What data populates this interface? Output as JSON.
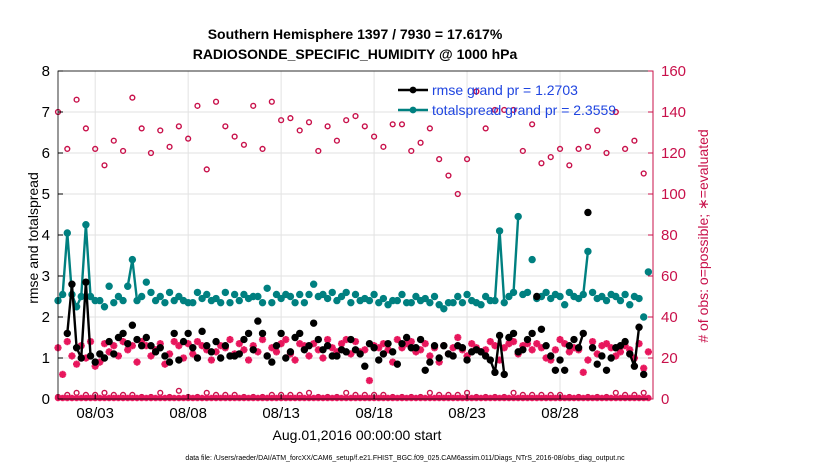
{
  "chart_data": {
    "type": "line",
    "title": "Southern Hemisphere 1397 / 7930 = 17.617%",
    "subtitle": "RADIOSONDE_SPECIFIC_HUMIDITY @ 1000 hPa",
    "xlabel": "Aug.01,2016 00:00:00 start",
    "ylabel": "rmse and totalspread",
    "y2label": "# of obs: o=possible; ∗=evaluated",
    "footnote": "data file: /Users/raeder/DAI/ATM_forcXX/CAM6_setup/f.e21.FHIST_BGC.f09_025.CAM6assim.011/Diags_NTrS_2016-08/obs_diag_output.nc",
    "xlim": [
      1,
      33
    ],
    "ylim": [
      0,
      8
    ],
    "y2lim": [
      0,
      160
    ],
    "x_tick_values": [
      3,
      8,
      13,
      18,
      23,
      28
    ],
    "x_tick_labels": [
      "08/03",
      "08/08",
      "08/13",
      "08/18",
      "08/23",
      "08/28"
    ],
    "y_tick_labels": [
      "0",
      "1",
      "2",
      "3",
      "4",
      "5",
      "6",
      "7",
      "8"
    ],
    "y2_tick_labels": [
      "0",
      "20",
      "40",
      "60",
      "80",
      "100",
      "120",
      "140",
      "160"
    ],
    "x": [
      1.0,
      1.25,
      1.5,
      1.75,
      2.0,
      2.25,
      2.5,
      2.75,
      3.0,
      3.25,
      3.5,
      3.75,
      4.0,
      4.25,
      4.5,
      4.75,
      5.0,
      5.25,
      5.5,
      5.75,
      6.0,
      6.25,
      6.5,
      6.75,
      7.0,
      7.25,
      7.5,
      7.75,
      8.0,
      8.25,
      8.5,
      8.75,
      9.0,
      9.25,
      9.5,
      9.75,
      10.0,
      10.25,
      10.5,
      10.75,
      11.0,
      11.25,
      11.5,
      11.75,
      12.0,
      12.25,
      12.5,
      12.75,
      13.0,
      13.25,
      13.5,
      13.75,
      14.0,
      14.25,
      14.5,
      14.75,
      15.0,
      15.25,
      15.5,
      15.75,
      16.0,
      16.25,
      16.5,
      16.75,
      17.0,
      17.25,
      17.5,
      17.75,
      18.0,
      18.25,
      18.5,
      18.75,
      19.0,
      19.25,
      19.5,
      19.75,
      20.0,
      20.25,
      20.5,
      20.75,
      21.0,
      21.25,
      21.5,
      21.75,
      22.0,
      22.25,
      22.5,
      22.75,
      23.0,
      23.25,
      23.5,
      23.75,
      24.0,
      24.25,
      24.5,
      24.75,
      25.0,
      25.25,
      25.5,
      25.75,
      26.0,
      26.25,
      26.5,
      26.75,
      27.0,
      27.25,
      27.5,
      27.75,
      28.0,
      28.25,
      28.5,
      28.75,
      29.0,
      29.25,
      29.5,
      29.75,
      30.0,
      30.25,
      30.5,
      30.75,
      31.0,
      31.25,
      31.5,
      31.75,
      32.0,
      32.25,
      32.5,
      32.75
    ],
    "series": [
      {
        "name": "rmse grand pr = 1.2703",
        "color": "#000000",
        "values": [
          null,
          null,
          1.6,
          2.8,
          1.25,
          1.0,
          2.85,
          1.05,
          0.9,
          1.1,
          1.0,
          1.4,
          1.1,
          1.5,
          1.6,
          1.35,
          1.8,
          1.45,
          1.3,
          1.5,
          1.3,
          1.15,
          1.25,
          1.05,
          0.9,
          1.6,
          0.95,
          1.4,
          1.6,
          1.25,
          1.0,
          1.65,
          1.3,
          1.15,
          1.4,
          1.0,
          1.3,
          1.05,
          1.05,
          1.1,
          1.45,
          1.6,
          1.2,
          1.9,
          1.6,
          1.05,
          0.9,
          1.3,
          1.6,
          1.0,
          1.15,
          1.5,
          1.6,
          1.2,
          1.3,
          1.85,
          1.45,
          1.2,
          1.3,
          1.05,
          1.05,
          1.2,
          1.15,
          1.45,
          1.2,
          1.1,
          0.8,
          1.35,
          1.25,
          0.95,
          1.1,
          1.35,
          1.15,
          0.85,
          1.35,
          1.5,
          1.25,
          1.25,
          1.45,
          0.7,
          0.9,
          1.3,
          1.0,
          1.3,
          1.1,
          1.05,
          1.3,
          1.25,
          0.95,
          1.15,
          1.2,
          1.15,
          1.05,
          0.95,
          0.65,
          1.55,
          0.6,
          1.5,
          1.6,
          1.15,
          1.2,
          1.45,
          1.6,
          2.5,
          1.7,
          1.3,
          1.05,
          0.7,
          0.95,
          0.7,
          1.3,
          1.45,
          1.25,
          1.6,
          4.55,
          1.25,
          0.85,
          1.05,
          0.7,
          1.0,
          1.25,
          1.3,
          1.4,
          1.1,
          0.8,
          1.75,
          0.6,
          null
        ],
        "connected": [
          [
            2,
            7
          ],
          [
            92,
            96
          ],
          [
            112,
            113
          ],
          [
            123,
            125
          ]
        ]
      },
      {
        "name": "totalspread grand pr = 2.3559",
        "color": "#008080",
        "values": [
          2.4,
          2.55,
          4.05,
          2.55,
          2.25,
          2.5,
          4.25,
          2.5,
          2.4,
          2.4,
          2.25,
          2.75,
          2.35,
          2.5,
          2.4,
          2.75,
          3.4,
          2.4,
          2.5,
          2.85,
          2.6,
          2.4,
          2.5,
          2.35,
          2.6,
          2.4,
          2.5,
          2.4,
          2.35,
          2.35,
          2.6,
          2.45,
          2.55,
          2.4,
          2.45,
          2.35,
          2.6,
          2.35,
          2.55,
          2.4,
          2.55,
          2.45,
          2.5,
          2.5,
          2.35,
          2.7,
          2.35,
          2.55,
          2.45,
          2.55,
          2.5,
          2.35,
          2.55,
          2.35,
          2.55,
          2.8,
          2.5,
          2.55,
          2.45,
          2.6,
          2.4,
          2.5,
          2.6,
          2.35,
          2.55,
          2.4,
          2.45,
          2.4,
          2.55,
          2.35,
          2.45,
          2.3,
          2.4,
          2.4,
          2.55,
          2.35,
          2.35,
          2.5,
          2.4,
          2.45,
          2.35,
          2.5,
          2.3,
          2.2,
          2.35,
          2.35,
          2.5,
          2.35,
          2.55,
          2.4,
          2.35,
          2.3,
          2.5,
          2.4,
          2.4,
          4.1,
          2.35,
          2.5,
          2.6,
          4.45,
          2.55,
          2.6,
          3.4,
          2.45,
          2.5,
          2.6,
          2.45,
          2.55,
          2.5,
          2.3,
          2.6,
          2.5,
          2.45,
          2.55,
          3.6,
          2.6,
          2.45,
          2.5,
          2.4,
          2.55,
          2.5,
          2.4,
          2.55,
          2.3,
          2.5,
          2.45,
          2.0,
          3.1
        ],
        "connected": [
          [
            0,
            8
          ],
          [
            15,
            17
          ],
          [
            93,
            96
          ],
          [
            97,
            99
          ],
          [
            112,
            114
          ],
          [
            124,
            125
          ]
        ]
      },
      {
        "name": "obs possible",
        "axis": "right",
        "color": "#c8104a",
        "marker": "o",
        "x": [
          1.0,
          1.5,
          2.0,
          2.5,
          3.0,
          3.5,
          4.0,
          4.5,
          5.0,
          5.5,
          6.0,
          6.5,
          7.0,
          7.5,
          8.0,
          8.5,
          9.0,
          9.5,
          10.0,
          10.5,
          11.0,
          11.5,
          12.0,
          12.5,
          13.0,
          13.5,
          14.0,
          14.5,
          15.0,
          15.5,
          16.0,
          16.5,
          17.0,
          17.5,
          18.0,
          18.5,
          19.0,
          19.5,
          20.0,
          20.5,
          21.0,
          21.5,
          22.0,
          22.5,
          23.0,
          23.5,
          24.0,
          24.5,
          25.0,
          25.5,
          26.0,
          26.5,
          27.0,
          27.5,
          28.0,
          28.5,
          29.0,
          29.5,
          30.0,
          30.5,
          31.0,
          31.5,
          32.0,
          32.5
        ],
        "values": [
          140,
          122,
          146,
          132,
          122,
          114,
          126,
          121,
          147,
          132,
          120,
          131,
          123,
          133,
          127,
          143,
          112,
          145,
          133,
          128,
          124,
          143,
          122,
          145,
          136,
          137,
          131,
          135,
          121,
          133,
          126,
          136,
          138,
          133,
          128,
          123,
          134,
          134,
          121,
          125,
          132,
          117,
          109,
          100,
          117,
          150,
          132,
          141,
          141,
          141,
          121,
          134,
          115,
          118,
          122,
          114,
          122,
          123,
          131,
          120,
          140,
          122,
          126,
          110
        ]
      },
      {
        "name": "obs evaluated",
        "axis": "right",
        "color": "#e8175d",
        "marker": "*",
        "x": [
          1.0,
          1.25,
          1.5,
          1.75,
          2.0,
          2.25,
          2.5,
          2.75,
          3.0,
          3.25,
          3.5,
          3.75,
          4.0,
          4.25,
          4.5,
          4.75,
          5.0,
          5.25,
          5.5,
          5.75,
          6.0,
          6.25,
          6.5,
          6.75,
          7.0,
          7.25,
          7.5,
          7.75,
          8.0,
          8.25,
          8.5,
          8.75,
          9.0,
          9.25,
          9.5,
          9.75,
          10.0,
          10.25,
          10.5,
          10.75,
          11.0,
          11.25,
          11.5,
          11.75,
          12.0,
          12.25,
          12.5,
          12.75,
          13.0,
          13.25,
          13.5,
          13.75,
          14.0,
          14.25,
          14.5,
          14.75,
          15.0,
          15.25,
          15.5,
          15.75,
          16.0,
          16.25,
          16.5,
          16.75,
          17.0,
          17.25,
          17.5,
          17.75,
          18.0,
          18.25,
          18.5,
          18.75,
          19.0,
          19.25,
          19.5,
          19.75,
          20.0,
          20.25,
          20.5,
          20.75,
          21.0,
          21.25,
          21.5,
          21.75,
          22.0,
          22.25,
          22.5,
          22.75,
          23.0,
          23.25,
          23.5,
          23.75,
          24.0,
          24.25,
          24.5,
          24.75,
          25.0,
          25.25,
          25.5,
          25.75,
          26.0,
          26.25,
          26.5,
          26.75,
          27.0,
          27.25,
          27.5,
          27.75,
          28.0,
          28.25,
          28.5,
          28.75,
          29.0,
          29.25,
          29.5,
          29.75,
          30.0,
          30.25,
          30.5,
          30.75,
          31.0,
          31.25,
          31.5,
          31.75,
          32.0,
          32.25,
          32.5,
          32.75
        ],
        "values": [
          25,
          12,
          28,
          21,
          17,
          26,
          20,
          28,
          16,
          18,
          27,
          23,
          26,
          21,
          28,
          24,
          26,
          18,
          28,
          26,
          21,
          24,
          27,
          17,
          22,
          28,
          26,
          20,
          27,
          22,
          28,
          26,
          24,
          19,
          23,
          26,
          25,
          29,
          22,
          27,
          24,
          19,
          26,
          23,
          29,
          21,
          25,
          23,
          27,
          29,
          22,
          19,
          27,
          26,
          21,
          27,
          24,
          20,
          29,
          25,
          23,
          27,
          29,
          22,
          28,
          23,
          24,
          9,
          26,
          25,
          27,
          24,
          18,
          29,
          25,
          27,
          28,
          23,
          24,
          27,
          21,
          25,
          18,
          26,
          22,
          25,
          30,
          24,
          21,
          27,
          25,
          23,
          24,
          28,
          26,
          19,
          25,
          27,
          28,
          22,
          26,
          27,
          24,
          27,
          25,
          20,
          19,
          24,
          29,
          27,
          23,
          25,
          24,
          13,
          19,
          28,
          22,
          26,
          27,
          25,
          21,
          23,
          26,
          24,
          20,
          27,
          15,
          23
        ],
        "baseline_o_values": [
          1,
          2,
          2,
          1,
          3,
          1,
          2,
          1,
          2,
          2,
          3,
          1,
          2,
          1,
          2,
          1,
          2,
          3,
          1,
          2,
          1,
          2,
          3,
          2,
          1,
          2,
          4,
          2,
          1,
          2,
          1,
          2,
          3,
          1,
          2,
          1,
          2,
          1,
          2,
          3,
          1,
          2,
          1,
          2,
          1,
          3,
          2,
          1,
          2,
          1,
          2,
          1,
          2,
          1,
          3,
          2,
          1,
          2,
          1,
          2,
          1,
          2,
          3,
          1,
          2,
          1,
          2,
          1,
          2,
          1,
          2,
          3,
          1,
          2,
          1,
          2,
          1,
          2,
          1,
          2,
          3,
          1,
          2,
          1,
          2,
          1,
          2,
          1,
          3,
          2,
          1,
          2,
          1,
          2,
          1,
          2,
          1,
          2,
          3,
          1,
          2,
          1,
          2,
          1,
          2,
          1,
          2,
          1,
          2,
          3,
          1,
          2,
          1,
          2,
          1,
          2,
          1,
          2,
          1,
          2,
          3,
          1,
          2,
          1,
          2,
          1,
          3,
          2
        ],
        "baseline_star_values": [
          0,
          0,
          0,
          0,
          0,
          0,
          0,
          0,
          0,
          0,
          0,
          0,
          0,
          0,
          0,
          0,
          0,
          0,
          0,
          0,
          0,
          0,
          0,
          0,
          0,
          0,
          0,
          0,
          0,
          0,
          0,
          0,
          0,
          0,
          0,
          0,
          0,
          0,
          0,
          0,
          0,
          0,
          0,
          0,
          0,
          0,
          0,
          0,
          0,
          0,
          0,
          0,
          0,
          0,
          0,
          0,
          0,
          0,
          0,
          0,
          0,
          0,
          0,
          0,
          0,
          0,
          0,
          0,
          0,
          0,
          0,
          0,
          0,
          0,
          0,
          0,
          0,
          0,
          0,
          0,
          0,
          0,
          0,
          0,
          0,
          0,
          0,
          0,
          0,
          0,
          0,
          0,
          0,
          0,
          0,
          0,
          0,
          0,
          0,
          0,
          0,
          0,
          0,
          0,
          0,
          0,
          0,
          0,
          0,
          0,
          0,
          0,
          0,
          0,
          0,
          0,
          0,
          0,
          0,
          0,
          0,
          0,
          0,
          0,
          0,
          0,
          0,
          0
        ]
      }
    ],
    "legend_position": "top-right",
    "grid": true
  },
  "colors": {
    "left_axis": "#000000",
    "right_axis": "#c8104a",
    "grid": "#e2e2e2",
    "legend_text": "#1f45e0"
  }
}
